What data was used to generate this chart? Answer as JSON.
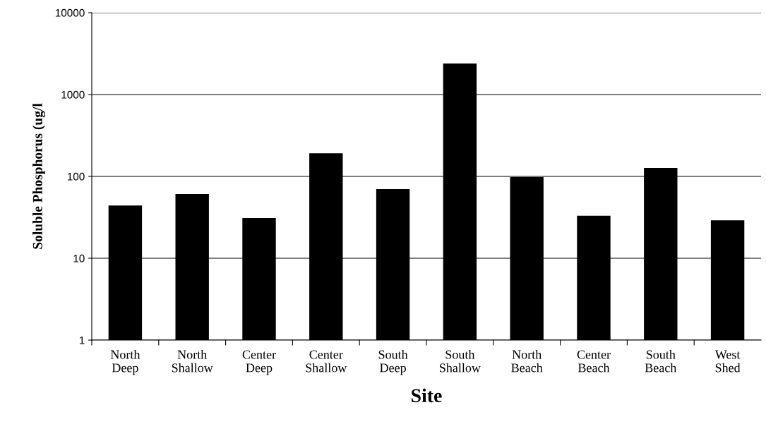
{
  "chart_data": {
    "type": "bar",
    "xlabel": "Site",
    "ylabel": "Soluble Phosphorus (ug/l",
    "categories": [
      "North Deep",
      "North Shallow",
      "Center Deep",
      "Center Shallow",
      "South Deep",
      "South Shallow",
      "North Beach",
      "Center Beach",
      "South Beach",
      "West Shed"
    ],
    "values": [
      44,
      61,
      31,
      192,
      70,
      2400,
      98,
      33,
      127,
      29
    ],
    "color": "#000000",
    "log": true,
    "ylim": [
      1,
      10000
    ],
    "yticks": [
      1,
      10,
      100,
      1000,
      10000
    ],
    "grid": "y"
  }
}
